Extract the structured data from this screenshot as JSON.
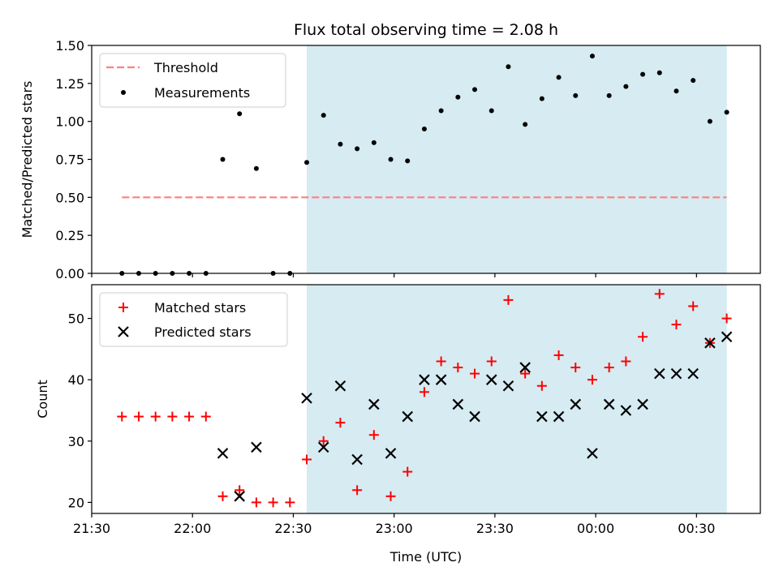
{
  "chart_data": {
    "title": "Flux total observing time = 2.08 h",
    "xlabel": "Time (UTC)",
    "x_ticks": [
      "21:30",
      "22:00",
      "22:30",
      "23:00",
      "23:30",
      "00:00",
      "00:30"
    ],
    "x_tick_minutes": [
      0,
      30,
      60,
      90,
      120,
      150,
      180
    ],
    "x_range_minutes": [
      0,
      199
    ],
    "shaded_region_minutes": [
      64,
      189
    ],
    "colors": {
      "shade": "#add8e6",
      "threshold": "#ff7f7f",
      "matched": "#ff0000",
      "predicted": "#000000",
      "measurement": "#000000"
    },
    "top": {
      "type": "scatter",
      "ylabel": "Matched/Predicted stars",
      "ylim": [
        0,
        1.5
      ],
      "y_ticks": [
        "0.00",
        "0.25",
        "0.50",
        "0.75",
        "1.00",
        "1.25",
        "1.50"
      ],
      "y_tick_values": [
        0,
        0.25,
        0.5,
        0.75,
        1.0,
        1.25,
        1.5
      ],
      "legend": [
        "Threshold",
        "Measurements"
      ],
      "threshold": {
        "name": "Threshold",
        "y": 0.5,
        "x_range_minutes": [
          9,
          189
        ]
      },
      "measurements": {
        "name": "Measurements",
        "points": [
          [
            9,
            0
          ],
          [
            14,
            0
          ],
          [
            19,
            0
          ],
          [
            24,
            0
          ],
          [
            29,
            0
          ],
          [
            34,
            0
          ],
          [
            39,
            0.75
          ],
          [
            44,
            1.05
          ],
          [
            49,
            0.69
          ],
          [
            54,
            0
          ],
          [
            59,
            0
          ],
          [
            64,
            0.73
          ],
          [
            69,
            1.04
          ],
          [
            74,
            0.85
          ],
          [
            79,
            0.82
          ],
          [
            84,
            0.86
          ],
          [
            89,
            0.75
          ],
          [
            94,
            0.74
          ],
          [
            99,
            0.95
          ],
          [
            104,
            1.07
          ],
          [
            109,
            1.16
          ],
          [
            114,
            1.21
          ],
          [
            119,
            1.07
          ],
          [
            124,
            1.36
          ],
          [
            129,
            0.98
          ],
          [
            134,
            1.15
          ],
          [
            139,
            1.29
          ],
          [
            144,
            1.17
          ],
          [
            149,
            1.43
          ],
          [
            154,
            1.17
          ],
          [
            159,
            1.23
          ],
          [
            164,
            1.31
          ],
          [
            169,
            1.32
          ],
          [
            174,
            1.2
          ],
          [
            179,
            1.27
          ],
          [
            184,
            1.0
          ],
          [
            189,
            1.06
          ]
        ]
      }
    },
    "bottom": {
      "type": "scatter",
      "ylabel": "Count",
      "ylim": [
        18.2,
        55.5
      ],
      "y_ticks": [
        "20",
        "30",
        "40",
        "50"
      ],
      "y_tick_values": [
        20,
        30,
        40,
        50
      ],
      "legend": [
        "Matched stars",
        "Predicted stars"
      ],
      "matched": {
        "name": "Matched stars",
        "points": [
          [
            9,
            34
          ],
          [
            14,
            34
          ],
          [
            19,
            34
          ],
          [
            24,
            34
          ],
          [
            29,
            34
          ],
          [
            34,
            34
          ],
          [
            39,
            21
          ],
          [
            44,
            22
          ],
          [
            49,
            20
          ],
          [
            54,
            20
          ],
          [
            59,
            20
          ],
          [
            64,
            27
          ],
          [
            69,
            30
          ],
          [
            74,
            33
          ],
          [
            79,
            22
          ],
          [
            84,
            31
          ],
          [
            89,
            21
          ],
          [
            94,
            25
          ],
          [
            99,
            38
          ],
          [
            104,
            43
          ],
          [
            109,
            42
          ],
          [
            114,
            41
          ],
          [
            119,
            43
          ],
          [
            124,
            53
          ],
          [
            129,
            41
          ],
          [
            134,
            39
          ],
          [
            139,
            44
          ],
          [
            144,
            42
          ],
          [
            149,
            40
          ],
          [
            154,
            42
          ],
          [
            159,
            43
          ],
          [
            164,
            47
          ],
          [
            169,
            54
          ],
          [
            174,
            49
          ],
          [
            179,
            52
          ],
          [
            184,
            46
          ],
          [
            189,
            50
          ]
        ]
      },
      "predicted": {
        "name": "Predicted stars",
        "points": [
          [
            39,
            28
          ],
          [
            44,
            21
          ],
          [
            49,
            29
          ],
          [
            64,
            37
          ],
          [
            69,
            29
          ],
          [
            74,
            39
          ],
          [
            79,
            27
          ],
          [
            84,
            36
          ],
          [
            89,
            28
          ],
          [
            94,
            34
          ],
          [
            99,
            40
          ],
          [
            104,
            40
          ],
          [
            109,
            36
          ],
          [
            114,
            34
          ],
          [
            119,
            40
          ],
          [
            124,
            39
          ],
          [
            129,
            42
          ],
          [
            134,
            34
          ],
          [
            139,
            34
          ],
          [
            144,
            36
          ],
          [
            149,
            28
          ],
          [
            154,
            36
          ],
          [
            159,
            35
          ],
          [
            164,
            36
          ],
          [
            169,
            41
          ],
          [
            174,
            41
          ],
          [
            179,
            41
          ],
          [
            184,
            46
          ],
          [
            189,
            47
          ]
        ]
      }
    }
  }
}
